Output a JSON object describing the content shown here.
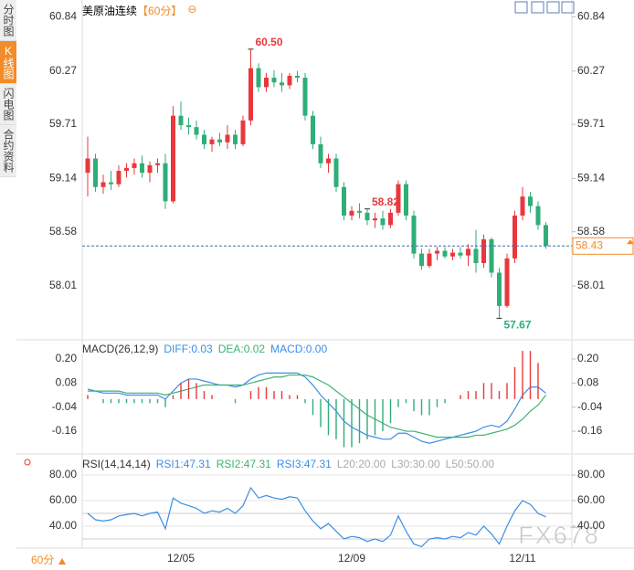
{
  "sidebar": {
    "tabs": [
      "分时图",
      "K线图",
      "闪电图",
      "合约资料"
    ],
    "active": 1
  },
  "chart_data": [
    {
      "type": "candlestick",
      "title": "美原油连续",
      "period": "【60分】",
      "categories": [
        null,
        null,
        null,
        null,
        null,
        null,
        null,
        null,
        null,
        null,
        null,
        null,
        "12/05",
        null,
        null,
        null,
        null,
        null,
        null,
        null,
        null,
        null,
        null,
        null,
        null,
        null,
        null,
        null,
        null,
        null,
        null,
        null,
        null,
        null,
        "12/09",
        null,
        null,
        null,
        null,
        null,
        null,
        null,
        null,
        null,
        null,
        null,
        null,
        null,
        null,
        null,
        null,
        null,
        null,
        null,
        null,
        null,
        "12/11",
        null,
        null,
        null
      ],
      "open": [
        59.2,
        59.35,
        59.05,
        59.1,
        59.08,
        59.22,
        59.25,
        59.3,
        59.2,
        59.28,
        59.3,
        58.9,
        59.8,
        59.7,
        59.68,
        59.6,
        59.5,
        59.55,
        59.52,
        59.6,
        59.5,
        59.75,
        60.3,
        60.1,
        60.2,
        60.15,
        60.12,
        60.22,
        60.2,
        59.8,
        59.5,
        59.3,
        59.35,
        59.05,
        58.75,
        58.8,
        58.78,
        58.7,
        58.72,
        58.65,
        58.78,
        59.08,
        58.75,
        58.35,
        58.22,
        58.35,
        58.38,
        58.32,
        58.36,
        58.33,
        58.4,
        58.25,
        58.5,
        58.15,
        57.8,
        58.3,
        58.75,
        58.95,
        58.85,
        58.65
      ],
      "high": [
        59.58,
        59.4,
        59.18,
        59.22,
        59.28,
        59.3,
        59.35,
        59.38,
        59.32,
        59.35,
        59.4,
        59.9,
        59.95,
        59.78,
        59.75,
        59.65,
        59.58,
        59.62,
        59.7,
        59.65,
        59.8,
        60.5,
        60.35,
        60.25,
        60.28,
        60.25,
        60.25,
        60.27,
        60.25,
        59.85,
        59.58,
        59.4,
        59.4,
        59.1,
        58.85,
        58.88,
        58.82,
        58.78,
        58.8,
        58.82,
        59.12,
        59.12,
        58.8,
        58.4,
        58.4,
        58.42,
        58.42,
        58.4,
        58.42,
        58.45,
        58.6,
        58.55,
        58.52,
        58.2,
        58.35,
        58.8,
        59.05,
        59.0,
        58.9,
        58.68
      ],
      "low": [
        58.95,
        59.0,
        58.98,
        59.02,
        59.05,
        59.15,
        59.18,
        59.15,
        59.1,
        59.2,
        58.82,
        58.88,
        59.65,
        59.6,
        59.55,
        59.45,
        59.42,
        59.48,
        59.45,
        59.45,
        59.48,
        59.7,
        60.05,
        60.05,
        60.1,
        60.05,
        60.08,
        60.15,
        59.75,
        59.45,
        59.25,
        59.2,
        59.0,
        58.7,
        58.7,
        58.72,
        58.65,
        58.62,
        58.6,
        58.62,
        58.75,
        58.7,
        58.3,
        58.18,
        58.2,
        58.28,
        58.3,
        58.28,
        58.3,
        58.22,
        58.15,
        58.2,
        58.1,
        57.67,
        57.78,
        58.25,
        58.7,
        58.78,
        58.6,
        58.4
      ],
      "close": [
        59.35,
        59.05,
        59.1,
        59.08,
        59.22,
        59.25,
        59.3,
        59.2,
        59.28,
        59.3,
        58.9,
        59.8,
        59.7,
        59.68,
        59.6,
        59.5,
        59.55,
        59.52,
        59.6,
        59.5,
        59.75,
        60.3,
        60.1,
        60.2,
        60.15,
        60.12,
        60.22,
        60.2,
        59.8,
        59.5,
        59.3,
        59.35,
        59.05,
        58.75,
        58.8,
        58.78,
        58.7,
        58.72,
        58.65,
        58.78,
        59.08,
        58.75,
        58.35,
        58.22,
        58.35,
        58.38,
        58.32,
        58.36,
        58.33,
        58.4,
        58.25,
        58.5,
        58.15,
        57.8,
        58.3,
        58.75,
        58.95,
        58.85,
        58.65,
        58.43
      ],
      "up_color": "#e8383d",
      "down_color": "#2fae77",
      "ylim": [
        57.53,
        60.94
      ],
      "yticks": [
        60.84,
        60.27,
        59.71,
        59.14,
        58.58,
        58.01
      ],
      "current_price": {
        "value": 58.43,
        "label": "58.43"
      },
      "annotations": [
        {
          "value": 60.5,
          "label": "60.50"
        },
        {
          "value": 58.82,
          "label": "58.82"
        },
        {
          "value": 57.67,
          "label": "57.67"
        }
      ]
    },
    {
      "type": "macd",
      "legend": [
        "MACD(26,12,9)",
        "DIFF:0.03",
        "DEA:0.02",
        "MACD:0.00"
      ],
      "series": [
        {
          "color": "#3a8ee6",
          "values": [
            0.05,
            0.04,
            0.03,
            0.03,
            0.03,
            0.02,
            0.02,
            0.02,
            0.02,
            0.02,
            0.0,
            0.04,
            0.08,
            0.1,
            0.1,
            0.09,
            0.08,
            0.07,
            0.07,
            0.06,
            0.07,
            0.1,
            0.12,
            0.13,
            0.13,
            0.13,
            0.13,
            0.13,
            0.11,
            0.07,
            0.02,
            -0.02,
            -0.06,
            -0.11,
            -0.14,
            -0.16,
            -0.18,
            -0.19,
            -0.2,
            -0.2,
            -0.17,
            -0.17,
            -0.19,
            -0.21,
            -0.22,
            -0.21,
            -0.2,
            -0.19,
            -0.18,
            -0.17,
            -0.16,
            -0.14,
            -0.13,
            -0.14,
            -0.11,
            -0.05,
            0.02,
            0.06,
            0.06,
            0.03
          ]
        },
        {
          "color": "#3cb371",
          "values": [
            0.04,
            0.04,
            0.04,
            0.04,
            0.04,
            0.03,
            0.03,
            0.03,
            0.03,
            0.03,
            0.02,
            0.03,
            0.04,
            0.05,
            0.06,
            0.07,
            0.07,
            0.07,
            0.07,
            0.07,
            0.07,
            0.08,
            0.09,
            0.1,
            0.11,
            0.11,
            0.12,
            0.12,
            0.12,
            0.11,
            0.09,
            0.07,
            0.04,
            0.01,
            -0.02,
            -0.05,
            -0.08,
            -0.1,
            -0.12,
            -0.14,
            -0.15,
            -0.16,
            -0.16,
            -0.17,
            -0.18,
            -0.19,
            -0.19,
            -0.19,
            -0.19,
            -0.19,
            -0.18,
            -0.18,
            -0.17,
            -0.16,
            -0.15,
            -0.13,
            -0.1,
            -0.06,
            -0.03,
            0.02
          ]
        },
        {
          "type": "histogram",
          "values": [
            0.02,
            0,
            -0.02,
            -0.02,
            -0.02,
            -0.02,
            -0.02,
            -0.02,
            -0.02,
            -0.02,
            -0.04,
            0.02,
            0.08,
            0.1,
            0.08,
            0.04,
            0.02,
            0,
            0,
            -0.02,
            0,
            0.04,
            0.06,
            0.06,
            0.04,
            0.04,
            0.02,
            0.02,
            -0.02,
            -0.08,
            -0.14,
            -0.18,
            -0.2,
            -0.24,
            -0.24,
            -0.22,
            -0.2,
            -0.18,
            -0.16,
            -0.12,
            -0.04,
            -0.02,
            -0.06,
            -0.08,
            -0.08,
            -0.04,
            -0.02,
            0,
            0.02,
            0.04,
            0.04,
            0.08,
            0.08,
            0.04,
            0.08,
            0.16,
            0.24,
            0.24,
            0.18,
            0
          ]
        }
      ],
      "ylim": [
        -0.26,
        0.27
      ],
      "yticks": [
        {
          "value": 0.2,
          "label": "0.20"
        },
        0.08,
        -0.04,
        -0.16
      ]
    },
    {
      "type": "rsi",
      "legend": [
        "RSI(14,14,14)",
        "RSI1:47.31",
        "RSI2:47.31",
        "RSI3:47.31",
        "L20:20.00",
        "L30:30.00",
        "L50:50.00"
      ],
      "series": [
        {
          "color": "#3a8ee6",
          "values": [
            50,
            45,
            44,
            45,
            48,
            49,
            50,
            48,
            50,
            51,
            38,
            62,
            58,
            56,
            54,
            50,
            52,
            51,
            54,
            50,
            56,
            70,
            62,
            64,
            62,
            61,
            63,
            62,
            52,
            44,
            38,
            42,
            36,
            30,
            32,
            31,
            28,
            30,
            28,
            33,
            48,
            36,
            26,
            24,
            30,
            31,
            30,
            32,
            31,
            35,
            33,
            40,
            34,
            26,
            40,
            52,
            60,
            57,
            50,
            47.31
          ]
        }
      ],
      "levels": [
        20,
        30,
        50
      ],
      "ylim": [
        23,
        86
      ],
      "yticks": [
        {
          "value": 80,
          "label": "80.00"
        },
        {
          "value": 60,
          "label": "60.00"
        },
        {
          "value": 40,
          "label": "40.00"
        }
      ]
    }
  ],
  "footer": {
    "period": "60分"
  },
  "watermark": "FX678"
}
